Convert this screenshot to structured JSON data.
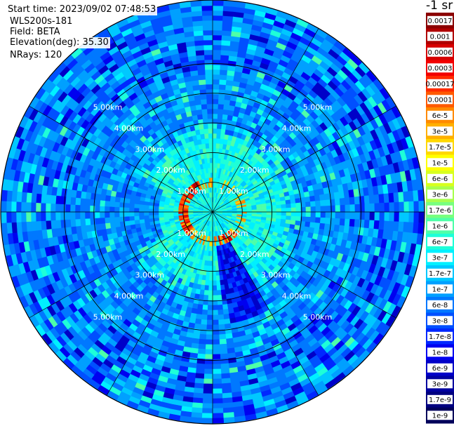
{
  "info": {
    "start_time": "Start time: 2023/09/02 07:48:53",
    "instrument": "WLS200s-181",
    "field": "Field: BETA",
    "elevation": "Elevation(deg): 35.30",
    "nrays": "NRays: 120"
  },
  "colorbar": {
    "unit": "-1 sr",
    "bins": [
      {
        "label": "0.0017",
        "color": "#8b0000"
      },
      {
        "label": "0.001",
        "color": "#b00000"
      },
      {
        "label": "0.0006",
        "color": "#d60000"
      },
      {
        "label": "0.0003",
        "color": "#f20000"
      },
      {
        "label": "0.00017",
        "color": "#ff2a00"
      },
      {
        "label": "0.0001",
        "color": "#ff5a00"
      },
      {
        "label": "6e-5",
        "color": "#ff8a00"
      },
      {
        "label": "3e-5",
        "color": "#ffb000"
      },
      {
        "label": "1.7e-5",
        "color": "#ffd800"
      },
      {
        "label": "1e-5",
        "color": "#ffff00"
      },
      {
        "label": "6e-6",
        "color": "#d8ff1e"
      },
      {
        "label": "3e-6",
        "color": "#a8ff4e"
      },
      {
        "label": "1.7e-6",
        "color": "#78ff7e"
      },
      {
        "label": "1e-6",
        "color": "#4effa8"
      },
      {
        "label": "6e-7",
        "color": "#1effd8"
      },
      {
        "label": "3e-7",
        "color": "#00f0ff"
      },
      {
        "label": "1.7e-7",
        "color": "#00c8ff"
      },
      {
        "label": "1e-7",
        "color": "#00a0ff"
      },
      {
        "label": "6e-8",
        "color": "#0078ff"
      },
      {
        "label": "3e-8",
        "color": "#0050ff"
      },
      {
        "label": "1.7e-8",
        "color": "#0028ff"
      },
      {
        "label": "1e-8",
        "color": "#0000f0"
      },
      {
        "label": "6e-9",
        "color": "#0000c8"
      },
      {
        "label": "3e-9",
        "color": "#0000a0"
      },
      {
        "label": "1.7e-9",
        "color": "#000080"
      },
      {
        "label": "1e-9",
        "color": "#00005a"
      }
    ]
  },
  "chart_data": {
    "type": "heatmap",
    "projection": "polar PPI",
    "field": "BETA",
    "ring_labels": [
      "1.00km",
      "2.00km",
      "3.00km",
      "4.00km",
      "5.00km"
    ],
    "rings_km": [
      1,
      2,
      3,
      4,
      5
    ],
    "max_range_km": 5.6,
    "spoke_angles_deg": [
      0,
      30,
      60,
      90,
      120,
      150,
      180,
      210,
      240,
      270,
      300,
      330
    ],
    "pattern": [
      {
        "range_km": [
          0.0,
          0.8
        ],
        "value": "1.7e-7 to 6e-7 (cyan)"
      },
      {
        "range_km": [
          0.85,
          1.05
        ],
        "value": "3e-5 to 0.001 (red ring, strongest W and SE)"
      },
      {
        "range_km": [
          1.1,
          3.0
        ],
        "value": "1e-7 to 1e-6 (cyan / light green)"
      },
      {
        "range_km": [
          3.0,
          5.6
        ],
        "value": "3e-8 to 1.7e-7 (blue)"
      }
    ],
    "low_sectors": [
      {
        "azimuth_deg": [
          150,
          170
        ],
        "value": "6e-9 to 3e-8 (deep blue wedge)"
      },
      {
        "azimuth_deg": [
          245,
          290
        ],
        "value": "1e-8 to 6e-8 (blue wedge)"
      }
    ]
  }
}
